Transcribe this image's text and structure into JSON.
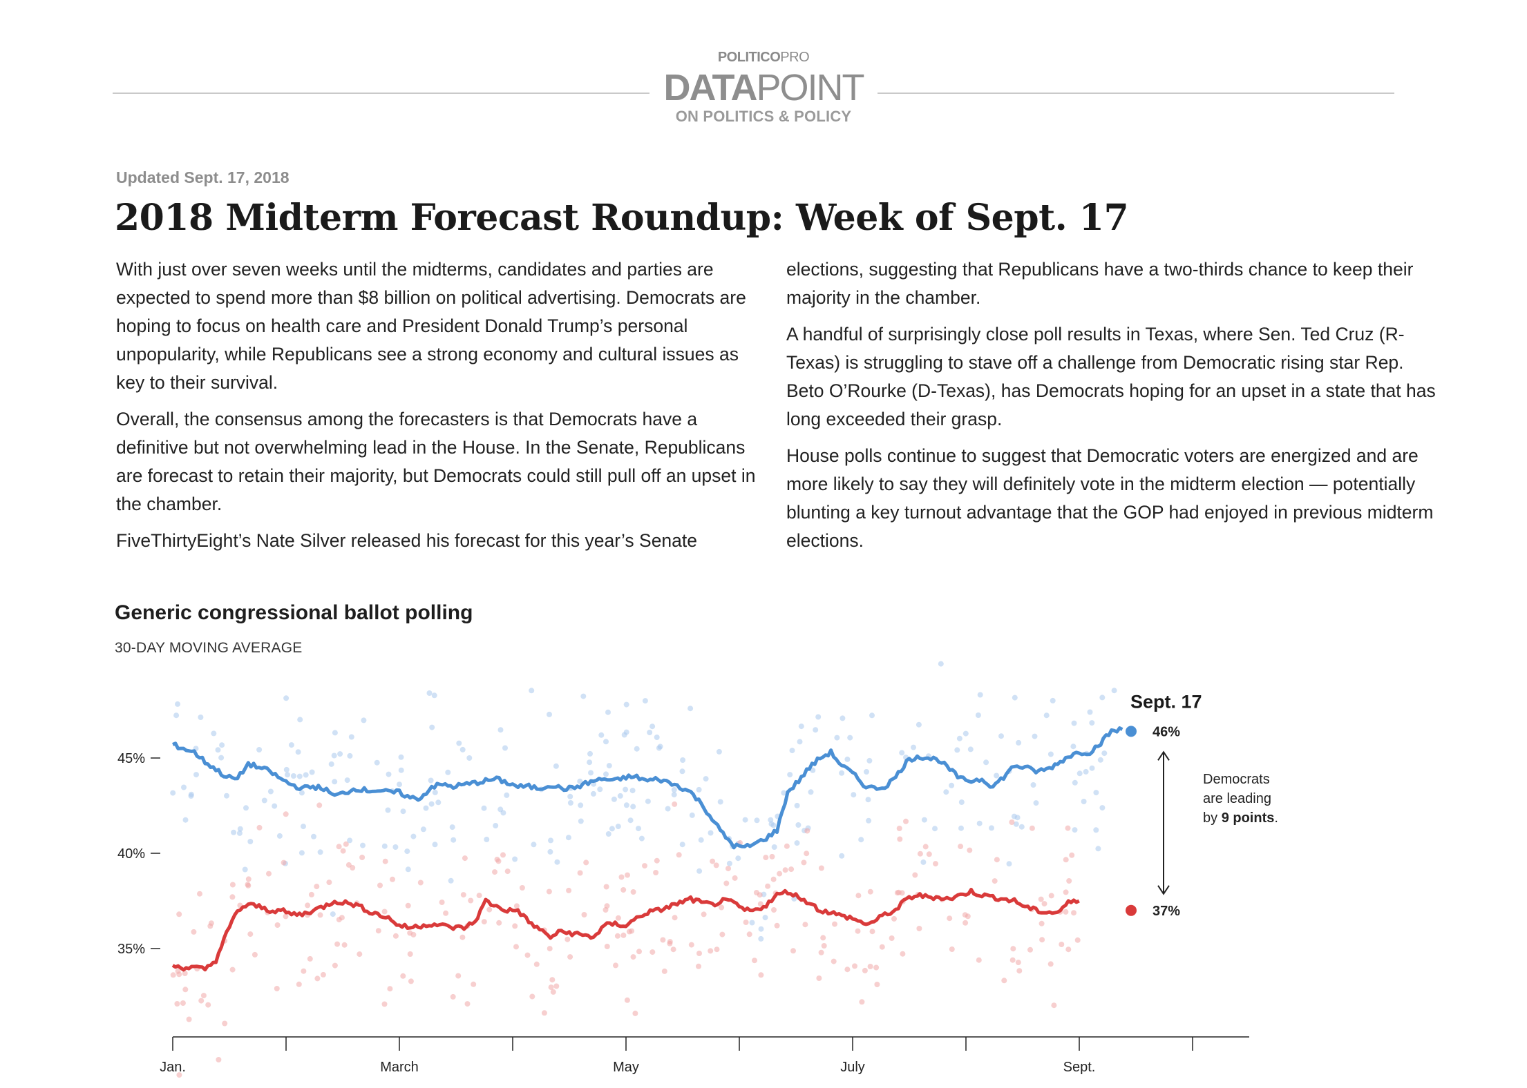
{
  "masthead": {
    "brand_bold": "POLITICO",
    "brand_light": "PRO",
    "logo_bold": "DATA",
    "logo_light": "POINT",
    "tagline": "ON POLITICS & POLICY"
  },
  "article": {
    "updated": "Updated Sept. 17, 2018",
    "headline": "2018 Midterm Forecast Roundup: Week of Sept. 17",
    "left_paragraphs": [
      "With just over seven weeks until the midterms, candidates and parties are expected to spend more than $8 billion on political advertising. Democrats are hoping to focus on health care and President Donald Trump’s personal unpopularity, while Republicans see a strong economy and cultural issues as key to their survival.",
      "Overall, the consensus among the forecasters is that Democrats have a definitive but not overwhelming lead in the House. In the Senate, Republicans are forecast to retain their majority, but Democrats could still pull off an upset in the chamber.",
      "FiveThirtyEight’s Nate Silver released his forecast for this year’s Senate"
    ],
    "right_paragraphs": [
      "elections, suggesting that Republicans have a two-thirds chance to keep their majority in the chamber.",
      "A handful of surprisingly close poll results in Texas, where Sen. Ted Cruz (R-Texas) is struggling to stave off a challenge from Democratic rising star Rep. Beto O’Rourke (D-Texas), has Democrats hoping for an upset in a state that has long exceeded their grasp.",
      "House polls continue to suggest that Democratic voters are energized and are more likely to say they will definitely vote in the midterm election — potentially blunting a key turnout advantage that the GOP had enjoyed in previous midterm elections."
    ]
  },
  "chart": {
    "title": "Generic congressional ballot polling",
    "subtitle": "30-DAY MOVING AVERAGE"
  },
  "chart_data": {
    "type": "line",
    "title": "Generic congressional ballot polling",
    "subtitle": "30-DAY MOVING AVERAGE",
    "x_ticks": [
      "Jan.",
      "March",
      "May",
      "July",
      "Sept."
    ],
    "y_ticks": [
      "35%",
      "40%",
      "45%"
    ],
    "ylim": [
      30,
      50
    ],
    "x_domain_weeks": [
      0,
      45
    ],
    "grid": false,
    "series": [
      {
        "party": "Democrats",
        "color": "#4a8fd4",
        "dot_color": "#a9c8ec",
        "points_week_value": [
          [
            0,
            45.7
          ],
          [
            0.5,
            45.5
          ],
          [
            1,
            45.3
          ],
          [
            1.5,
            44.8
          ],
          [
            2,
            44.4
          ],
          [
            2.5,
            44.0
          ],
          [
            3,
            43.9
          ],
          [
            3.5,
            44.7
          ],
          [
            4,
            44.5
          ],
          [
            4.5,
            44.3
          ],
          [
            5,
            43.9
          ],
          [
            5.5,
            43.6
          ],
          [
            6,
            43.4
          ],
          [
            6.5,
            43.5
          ],
          [
            7,
            43.4
          ],
          [
            7.5,
            43.0
          ],
          [
            8,
            43.2
          ],
          [
            8.5,
            43.4
          ],
          [
            9,
            43.3
          ],
          [
            9.5,
            43.3
          ],
          [
            10,
            43.2
          ],
          [
            10.5,
            43.2
          ],
          [
            11,
            42.9
          ],
          [
            11.5,
            42.9
          ],
          [
            12,
            43.5
          ],
          [
            12.5,
            43.6
          ],
          [
            13,
            43.5
          ],
          [
            13.5,
            43.6
          ],
          [
            14,
            43.7
          ],
          [
            14.5,
            43.8
          ],
          [
            15,
            43.9
          ],
          [
            15.5,
            43.7
          ],
          [
            16,
            43.5
          ],
          [
            16.5,
            43.5
          ],
          [
            17,
            43.4
          ],
          [
            17.5,
            43.6
          ],
          [
            18,
            43.4
          ],
          [
            18.5,
            43.4
          ],
          [
            19,
            43.6
          ],
          [
            19.5,
            43.8
          ],
          [
            20,
            43.9
          ],
          [
            20.5,
            43.8
          ],
          [
            21,
            44.0
          ],
          [
            21.5,
            44.0
          ],
          [
            22,
            43.8
          ],
          [
            22.5,
            43.9
          ],
          [
            23,
            43.7
          ],
          [
            23.5,
            43.5
          ],
          [
            24,
            43.2
          ],
          [
            24.5,
            42.6
          ],
          [
            25,
            41.8
          ],
          [
            25.5,
            41.0
          ],
          [
            26,
            40.4
          ],
          [
            26.5,
            40.3
          ],
          [
            27,
            40.5
          ],
          [
            27.5,
            40.8
          ],
          [
            28,
            41.2
          ],
          [
            28.5,
            43.2
          ],
          [
            29,
            43.8
          ],
          [
            29.5,
            44.5
          ],
          [
            30,
            45.0
          ],
          [
            30.5,
            45.3
          ],
          [
            31,
            44.6
          ],
          [
            31.5,
            44.2
          ],
          [
            32,
            43.6
          ],
          [
            32.5,
            43.4
          ],
          [
            33,
            43.5
          ],
          [
            33.5,
            44.0
          ],
          [
            34,
            44.8
          ],
          [
            34.5,
            45.1
          ],
          [
            35,
            45.0
          ],
          [
            35.5,
            44.9
          ],
          [
            36,
            44.4
          ],
          [
            36.5,
            43.9
          ],
          [
            37,
            43.8
          ],
          [
            37.5,
            43.9
          ],
          [
            38,
            43.5
          ],
          [
            38.5,
            44.0
          ],
          [
            39,
            44.6
          ],
          [
            39.5,
            44.5
          ],
          [
            40,
            44.3
          ],
          [
            40.5,
            44.4
          ],
          [
            41,
            44.7
          ],
          [
            41.5,
            45.1
          ],
          [
            42,
            45.3
          ],
          [
            42.5,
            45.3
          ],
          [
            43,
            45.8
          ],
          [
            43.5,
            46.4
          ],
          [
            44,
            46.5
          ]
        ],
        "end_label": "46%"
      },
      {
        "party": "Republicans",
        "color": "#d93a3a",
        "dot_color": "#f0a7a7",
        "points_week_value": [
          [
            0,
            34.1
          ],
          [
            0.5,
            34.0
          ],
          [
            1,
            34.0
          ],
          [
            1.5,
            33.9
          ],
          [
            2,
            34.4
          ],
          [
            2.5,
            35.8
          ],
          [
            3,
            37.0
          ],
          [
            3.5,
            37.3
          ],
          [
            4,
            37.2
          ],
          [
            4.5,
            37.0
          ],
          [
            5,
            37.0
          ],
          [
            5.5,
            36.8
          ],
          [
            6,
            36.8
          ],
          [
            6.5,
            37.0
          ],
          [
            7,
            37.2
          ],
          [
            7.5,
            37.5
          ],
          [
            8,
            37.4
          ],
          [
            8.5,
            37.3
          ],
          [
            9,
            37.0
          ],
          [
            9.5,
            36.8
          ],
          [
            10,
            36.6
          ],
          [
            10.5,
            36.2
          ],
          [
            11,
            36.1
          ],
          [
            11.5,
            36.2
          ],
          [
            12,
            36.3
          ],
          [
            12.5,
            36.2
          ],
          [
            13,
            36.1
          ],
          [
            13.5,
            36.1
          ],
          [
            14,
            36.4
          ],
          [
            14.5,
            37.5
          ],
          [
            15,
            37.2
          ],
          [
            15.5,
            37.0
          ],
          [
            16,
            37.0
          ],
          [
            16.5,
            36.4
          ],
          [
            17,
            36.0
          ],
          [
            17.5,
            35.6
          ],
          [
            18,
            35.9
          ],
          [
            18.5,
            35.8
          ],
          [
            19,
            35.7
          ],
          [
            19.5,
            35.6
          ],
          [
            20,
            36.2
          ],
          [
            20.5,
            36.3
          ],
          [
            21,
            36.2
          ],
          [
            21.5,
            36.6
          ],
          [
            22,
            36.9
          ],
          [
            22.5,
            37.0
          ],
          [
            23,
            37.2
          ],
          [
            23.5,
            37.4
          ],
          [
            24,
            37.6
          ],
          [
            24.5,
            37.4
          ],
          [
            25,
            37.3
          ],
          [
            25.5,
            37.5
          ],
          [
            26,
            37.4
          ],
          [
            26.5,
            37.0
          ],
          [
            27,
            37.0
          ],
          [
            27.5,
            37.3
          ],
          [
            28,
            37.8
          ],
          [
            28.5,
            38.0
          ],
          [
            29,
            37.7
          ],
          [
            29.5,
            37.4
          ],
          [
            30,
            37.0
          ],
          [
            30.5,
            36.9
          ],
          [
            31,
            36.7
          ],
          [
            31.5,
            36.6
          ],
          [
            32,
            36.3
          ],
          [
            32.5,
            36.4
          ],
          [
            33,
            36.8
          ],
          [
            33.5,
            37.0
          ],
          [
            34,
            37.6
          ],
          [
            34.5,
            37.8
          ],
          [
            35,
            37.7
          ],
          [
            35.5,
            37.7
          ],
          [
            36,
            37.6
          ],
          [
            36.5,
            37.8
          ],
          [
            37,
            38.0
          ],
          [
            37.5,
            37.8
          ],
          [
            38,
            37.7
          ],
          [
            38.5,
            37.6
          ],
          [
            39,
            37.5
          ],
          [
            39.5,
            37.2
          ],
          [
            40,
            37.0
          ],
          [
            40.5,
            36.9
          ],
          [
            41,
            36.9
          ],
          [
            41.5,
            37.4
          ],
          [
            42,
            37.5
          ]
        ],
        "end_label": "37%"
      }
    ],
    "annotation": {
      "date_label": "Sept. 17",
      "note_line1": "Democrats",
      "note_line2": "are leading",
      "note_line3_prefix": "by ",
      "note_line3_bold": "9 points",
      "note_line3_suffix": "."
    }
  }
}
